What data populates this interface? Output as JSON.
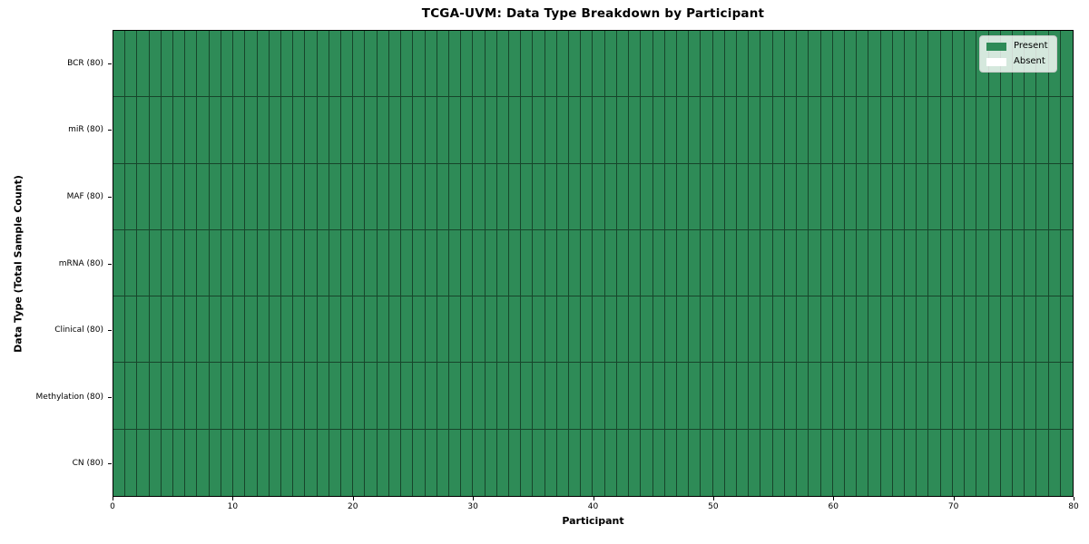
{
  "title": "TCGA-UVM: Data Type Breakdown by Participant",
  "axes": {
    "xlabel": "Participant",
    "ylabel": "Data Type (Total Sample Count)"
  },
  "legend": {
    "items": [
      {
        "label": "Present",
        "color": "#2e8b57"
      },
      {
        "label": "Absent",
        "color": "#ffffff"
      }
    ]
  },
  "colors": {
    "present": "#2e8b57",
    "absent": "#ffffff",
    "cell_edge": "rgba(0,0,0,0.5)",
    "spine": "#000000",
    "legend_background": "rgba(255,255,255,0.8)",
    "legend_border": "#cccccc"
  },
  "chart_data": {
    "type": "heatmap",
    "title": "TCGA-UVM: Data Type Breakdown by Participant",
    "xlabel": "Participant",
    "ylabel": "Data Type (Total Sample Count)",
    "x_range": [
      0,
      80
    ],
    "x_ticks": [
      0,
      10,
      20,
      30,
      40,
      50,
      60,
      70,
      80
    ],
    "n_participants": 80,
    "legend_entries": [
      "Present",
      "Absent"
    ],
    "legend_position": "upper right",
    "grid": false,
    "rows_top_to_bottom": [
      {
        "label": "BCR (80)",
        "data_type": "BCR",
        "total_samples": 80,
        "present_count": 80,
        "absent_count": 0
      },
      {
        "label": "miR (80)",
        "data_type": "miR",
        "total_samples": 80,
        "present_count": 80,
        "absent_count": 0
      },
      {
        "label": "MAF (80)",
        "data_type": "MAF",
        "total_samples": 80,
        "present_count": 80,
        "absent_count": 0
      },
      {
        "label": "mRNA (80)",
        "data_type": "mRNA",
        "total_samples": 80,
        "present_count": 80,
        "absent_count": 0
      },
      {
        "label": "Clinical (80)",
        "data_type": "Clinical",
        "total_samples": 80,
        "present_count": 80,
        "absent_count": 0
      },
      {
        "label": "Methylation (80)",
        "data_type": "Methylation",
        "total_samples": 80,
        "present_count": 80,
        "absent_count": 0
      },
      {
        "label": "CN (80)",
        "data_type": "CN",
        "total_samples": 80,
        "present_count": 80,
        "absent_count": 0
      }
    ],
    "all_cells_value": "Present"
  }
}
